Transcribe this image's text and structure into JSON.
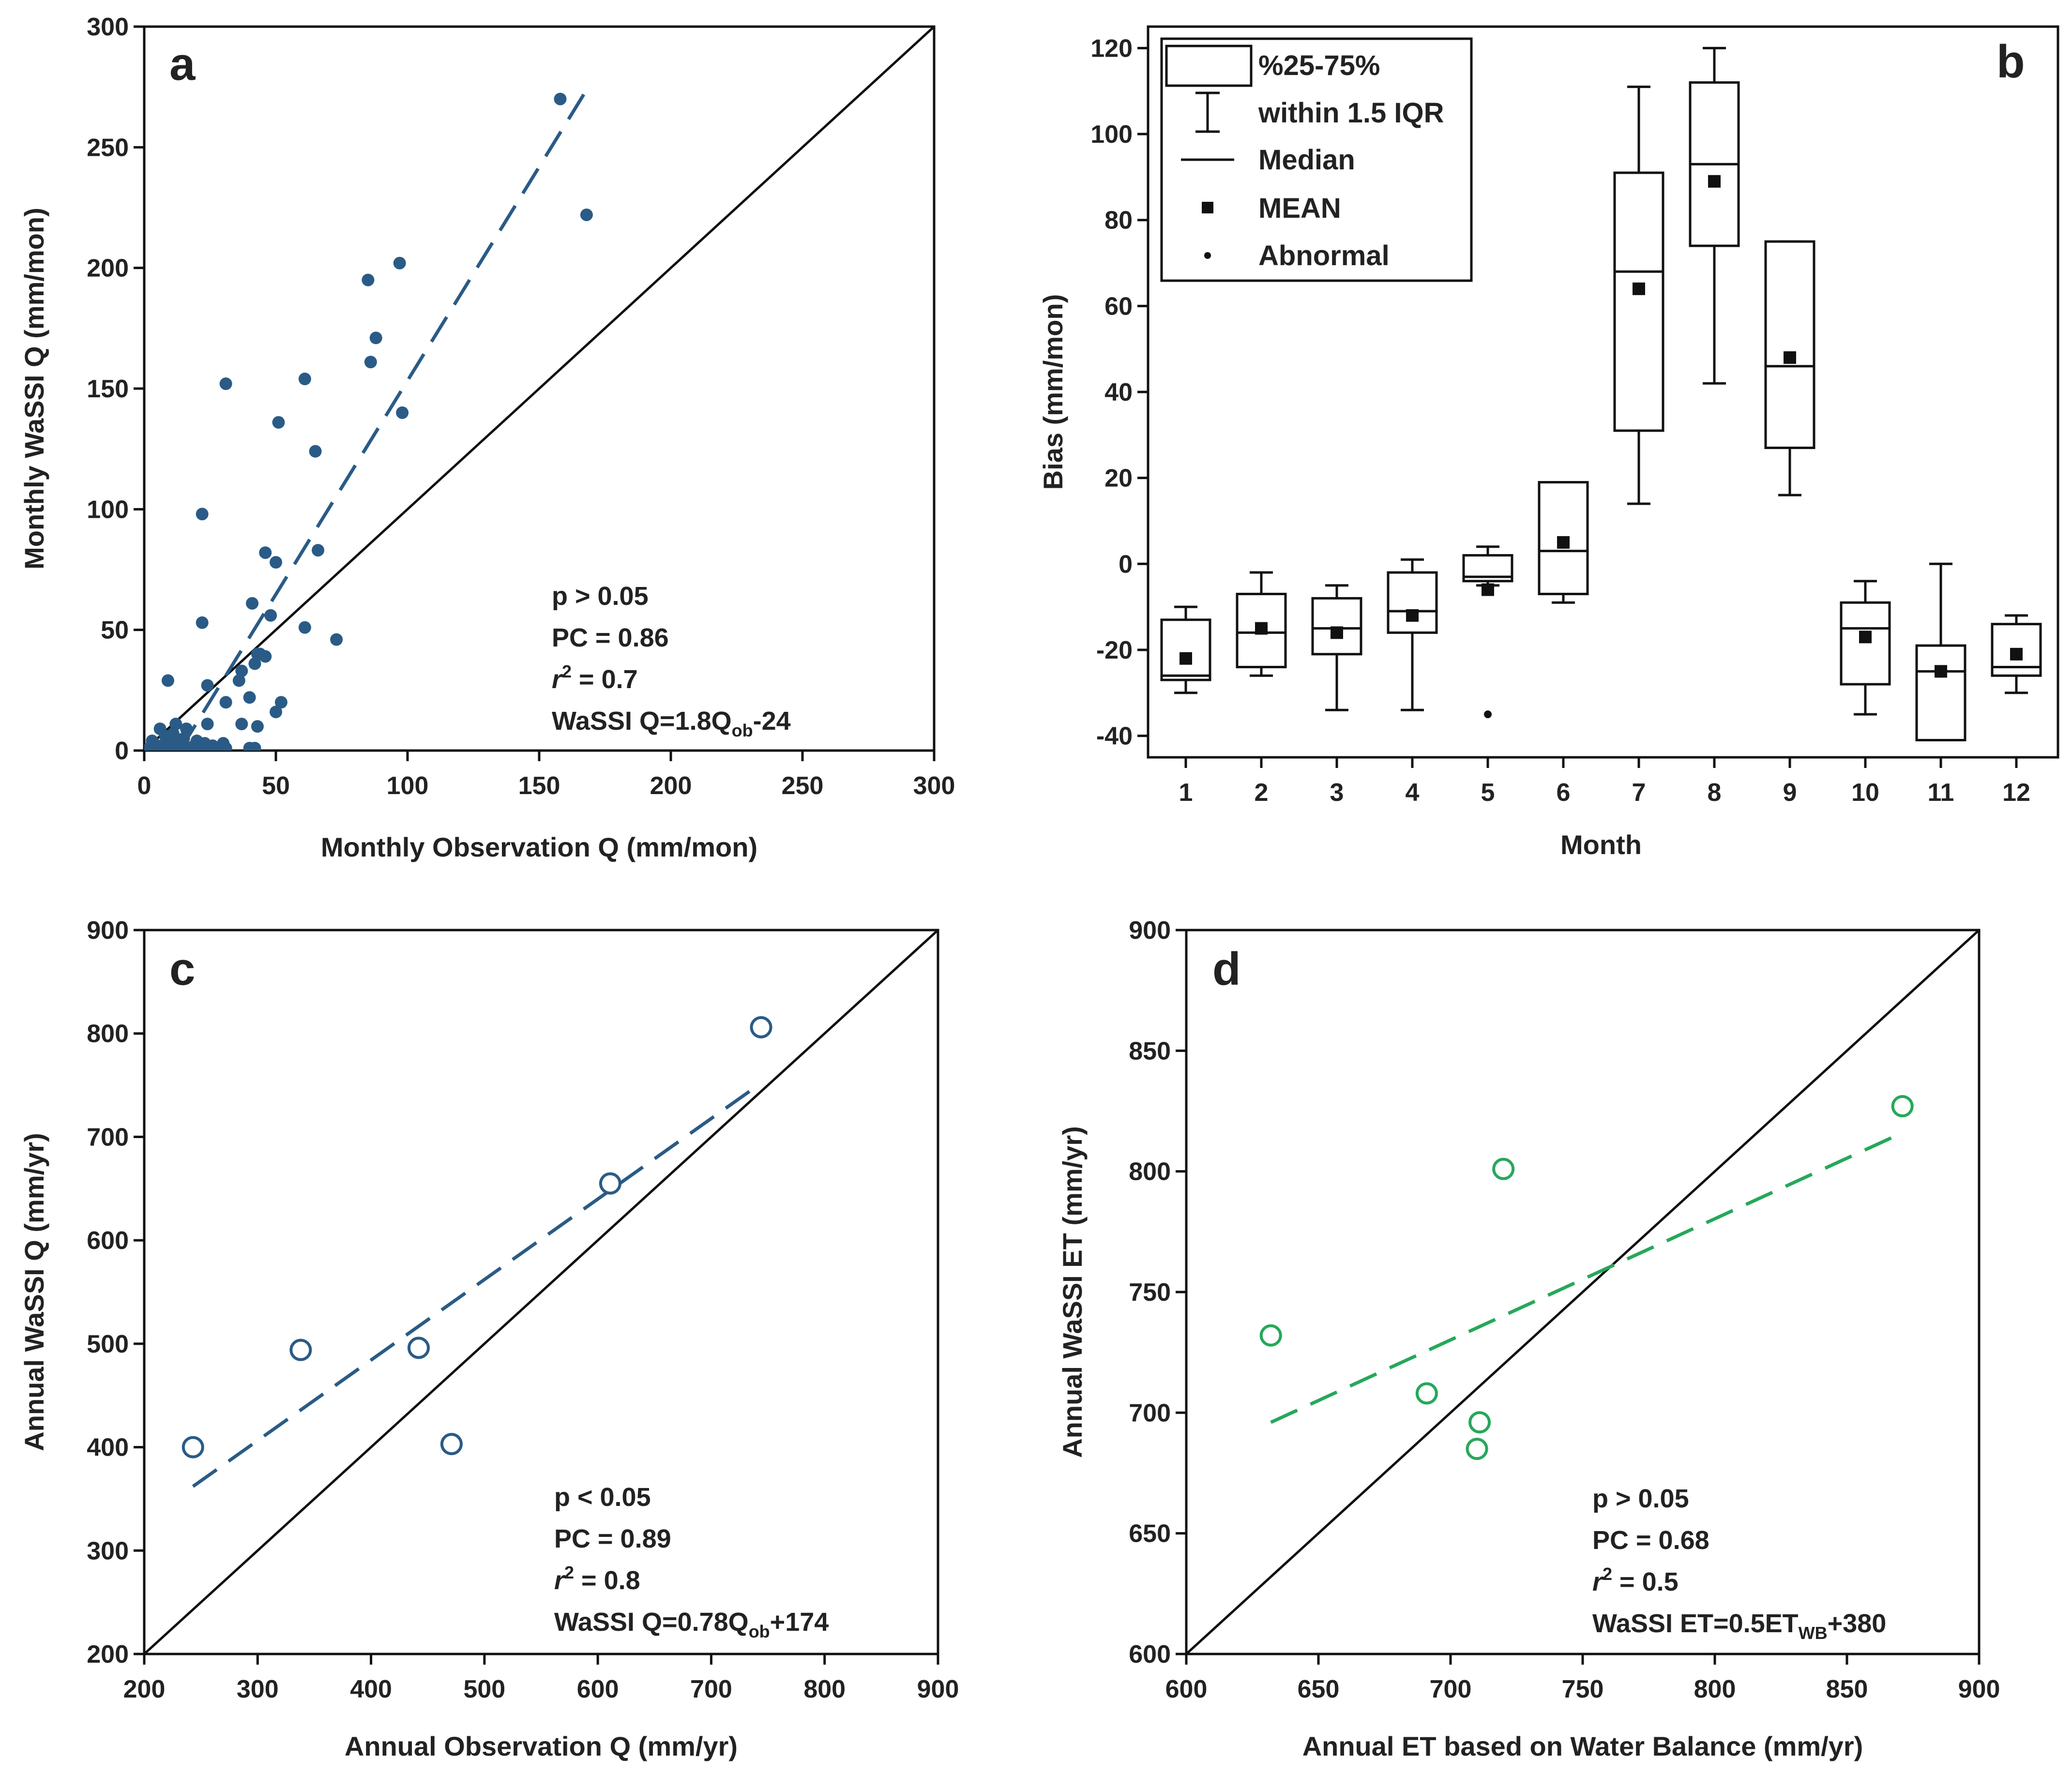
{
  "colors": {
    "blue": "#2a5b86",
    "green": "#26a85a",
    "black": "#111111"
  },
  "chart_data": [
    {
      "id": "a",
      "type": "scatter",
      "panel_label": "a",
      "xlabel": "Monthly Observation Q (mm/mon)",
      "ylabel": "Monthly WaSSI Q (mm/mon)",
      "xlim": [
        0,
        300
      ],
      "ylim": [
        0,
        300
      ],
      "xticks": [
        0,
        50,
        100,
        150,
        200,
        250,
        300
      ],
      "yticks": [
        0,
        50,
        100,
        150,
        200,
        250,
        300
      ],
      "marker": "filled-circle",
      "color": "#2a5b86",
      "points": [
        [
          158,
          270
        ],
        [
          168,
          222
        ],
        [
          85,
          195
        ],
        [
          97,
          202
        ],
        [
          86,
          161
        ],
        [
          88,
          171
        ],
        [
          31,
          152
        ],
        [
          61,
          154
        ],
        [
          51,
          136
        ],
        [
          98,
          140
        ],
        [
          65,
          124
        ],
        [
          66,
          83
        ],
        [
          22,
          98
        ],
        [
          46,
          82
        ],
        [
          50,
          78
        ],
        [
          41,
          61
        ],
        [
          48,
          56
        ],
        [
          22,
          53
        ],
        [
          61,
          51
        ],
        [
          73,
          46
        ],
        [
          9,
          29
        ],
        [
          24,
          27
        ],
        [
          43,
          40
        ],
        [
          46,
          39
        ],
        [
          44,
          40
        ],
        [
          42,
          36
        ],
        [
          37,
          33
        ],
        [
          36,
          29
        ],
        [
          40,
          22
        ],
        [
          31,
          20
        ],
        [
          52,
          20
        ],
        [
          50,
          16
        ],
        [
          24,
          11
        ],
        [
          37,
          11
        ],
        [
          43,
          10
        ],
        [
          12,
          11
        ],
        [
          16,
          9
        ],
        [
          20,
          4
        ],
        [
          6,
          9
        ],
        [
          3,
          4
        ],
        [
          8,
          6
        ],
        [
          11,
          7
        ],
        [
          13,
          4
        ],
        [
          15,
          5
        ],
        [
          5,
          2
        ],
        [
          9,
          2
        ],
        [
          12,
          1
        ],
        [
          17,
          1
        ],
        [
          22,
          1
        ],
        [
          25,
          1
        ],
        [
          28,
          1
        ],
        [
          31,
          1
        ],
        [
          40,
          1
        ],
        [
          42,
          1
        ],
        [
          2,
          1
        ],
        [
          4,
          1
        ],
        [
          7,
          2
        ],
        [
          10,
          3
        ],
        [
          14,
          2
        ],
        [
          19,
          2
        ],
        [
          23,
          3
        ],
        [
          26,
          2
        ],
        [
          30,
          3
        ]
      ],
      "fit_line": {
        "x": [
          5,
          167
        ],
        "y": [
          -15,
          272
        ],
        "style": "dashed"
      },
      "one_to_one": true,
      "annotation": {
        "p": "p > 0.05",
        "pc": "PC = 0.86",
        "r2": "r2 = 0.7",
        "eq_main": "WaSSI Q=1.8Q",
        "eq_sub": "ob",
        "eq_tail": "-24"
      }
    },
    {
      "id": "b",
      "type": "box",
      "panel_label": "b",
      "xlabel": "Month",
      "ylabel": "Bias (mm/mon)",
      "ylim": [
        -45,
        125
      ],
      "yticks": [
        -40,
        -20,
        0,
        20,
        40,
        60,
        80,
        100,
        120
      ],
      "categories": [
        "1",
        "2",
        "3",
        "4",
        "5",
        "6",
        "7",
        "8",
        "9",
        "10",
        "11",
        "12"
      ],
      "boxes": [
        {
          "wl": -30,
          "q1": -27,
          "med": -26,
          "q3": -13,
          "wh": -10,
          "mean": -22
        },
        {
          "wl": -26,
          "q1": -24,
          "med": -16,
          "q3": -7,
          "wh": -2,
          "mean": -15
        },
        {
          "wl": -34,
          "q1": -21,
          "med": -15,
          "q3": -8,
          "wh": -5,
          "mean": -16
        },
        {
          "wl": -34,
          "q1": -16,
          "med": -11,
          "q3": -2,
          "wh": 1,
          "mean": -12
        },
        {
          "wl": -5,
          "q1": -4,
          "med": -3,
          "q3": 2,
          "wh": 4,
          "mean": -6,
          "outliers": [
            -35
          ]
        },
        {
          "wl": -9,
          "q1": -7,
          "med": 3,
          "q3": 19,
          "wh": 19,
          "mean": 5
        },
        {
          "wl": 14,
          "q1": 31,
          "med": 68,
          "q3": 91,
          "wh": 111,
          "mean": 64
        },
        {
          "wl": 42,
          "q1": 74,
          "med": 93,
          "q3": 112,
          "wh": 120,
          "mean": 89
        },
        {
          "wl": 16,
          "q1": 27,
          "med": 46,
          "q3": 75,
          "wh": 75,
          "mean": 48
        },
        {
          "wl": -35,
          "q1": -28,
          "med": -15,
          "q3": -9,
          "wh": -4,
          "mean": -17
        },
        {
          "wl": -41,
          "q1": -41,
          "med": -25,
          "q3": -19,
          "wh": 0,
          "mean": -25
        },
        {
          "wl": -30,
          "q1": -26,
          "med": -24,
          "q3": -14,
          "wh": -12,
          "mean": -21
        }
      ],
      "legend": {
        "box": "%25-75%",
        "whisker": "within 1.5 IQR",
        "median": "Median",
        "mean": "MEAN",
        "outlier": "Abnormal"
      }
    },
    {
      "id": "c",
      "type": "scatter",
      "panel_label": "c",
      "xlabel": "Annual Observation Q (mm/yr)",
      "ylabel": "Annual WaSSI Q (mm/yr)",
      "xlim": [
        200,
        900
      ],
      "ylim": [
        200,
        900
      ],
      "xticks": [
        200,
        300,
        400,
        500,
        600,
        700,
        800,
        900
      ],
      "yticks": [
        200,
        300,
        400,
        500,
        600,
        700,
        800,
        900
      ],
      "marker": "open-circle",
      "color": "#2a5b86",
      "points": [
        [
          243,
          400
        ],
        [
          338,
          494
        ],
        [
          442,
          496
        ],
        [
          471,
          403
        ],
        [
          611,
          655
        ],
        [
          744,
          806
        ]
      ],
      "fit_line": {
        "x": [
          243,
          744
        ],
        "y": [
          362,
          752
        ],
        "style": "dashed"
      },
      "one_to_one": true,
      "annotation": {
        "p": "p < 0.05",
        "pc": "PC = 0.89",
        "r2": "r2 = 0.8",
        "eq_main": "WaSSI Q=0.78Q",
        "eq_sub": "ob",
        "eq_tail": "+174"
      }
    },
    {
      "id": "d",
      "type": "scatter",
      "panel_label": "d",
      "xlabel": "Annual ET based on Water Balance (mm/yr)",
      "ylabel": "Annual WaSSI ET (mm/yr)",
      "xlim": [
        600,
        900
      ],
      "ylim": [
        600,
        900
      ],
      "xticks": [
        600,
        650,
        700,
        750,
        800,
        850,
        900
      ],
      "yticks": [
        600,
        650,
        700,
        750,
        800,
        850,
        900
      ],
      "marker": "open-circle",
      "color": "#26a85a",
      "points": [
        [
          632,
          732
        ],
        [
          691,
          708
        ],
        [
          710,
          685
        ],
        [
          711,
          696
        ],
        [
          720,
          801
        ],
        [
          871,
          827
        ]
      ],
      "fit_line": {
        "x": [
          632,
          871
        ],
        "y": [
          696,
          816
        ],
        "style": "dashed"
      },
      "one_to_one": true,
      "annotation": {
        "p": "p > 0.05",
        "pc": "PC = 0.68",
        "r2": "r2 = 0.5",
        "eq_main": "WaSSI ET=0.5ET",
        "eq_sub": "WB",
        "eq_tail": "+380"
      }
    }
  ]
}
